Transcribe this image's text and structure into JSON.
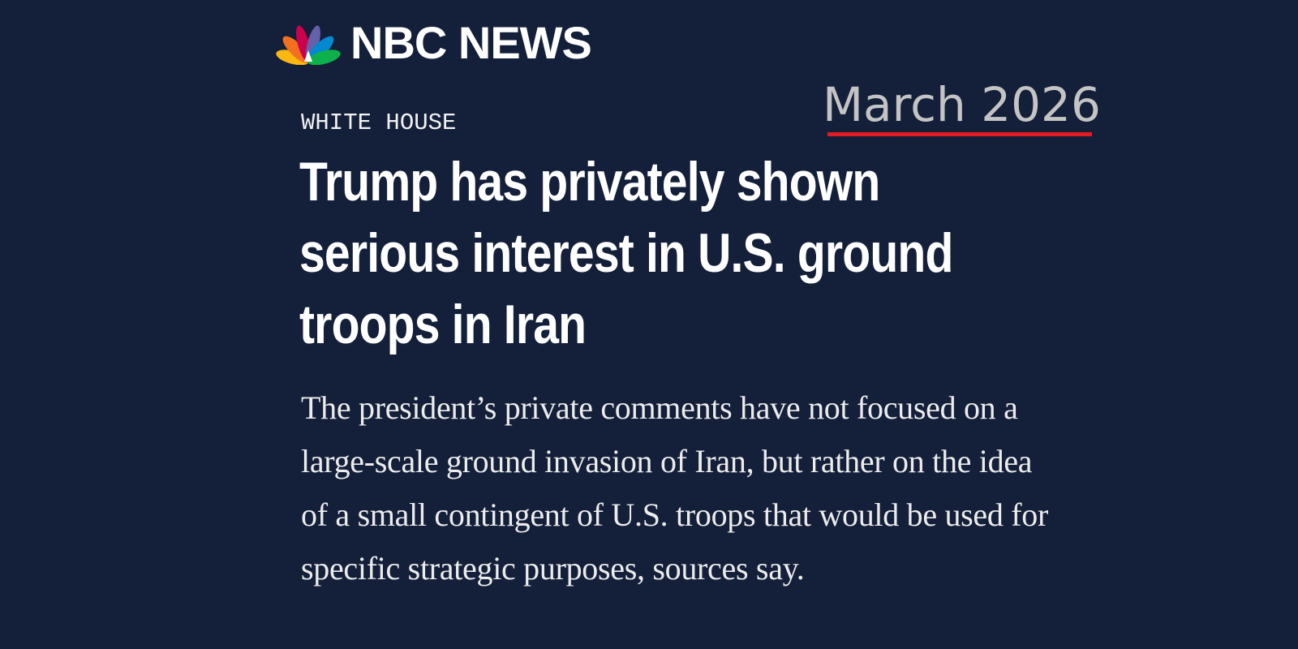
{
  "header": {
    "logo_text": "NBC NEWS",
    "annotation": "March 2026"
  },
  "article": {
    "section": "WHITE HOUSE",
    "headline_lines": [
      "Trump has privately shown",
      "serious interest in U.S. ground",
      "troops in Iran"
    ],
    "dek_lines": [
      "The president’s private comments have not focused on a",
      "large-scale ground invasion of Iran, but rather on the idea",
      "of a small contingent of U.S. troops that would be used for",
      "specific strategic purposes, sources say."
    ]
  }
}
